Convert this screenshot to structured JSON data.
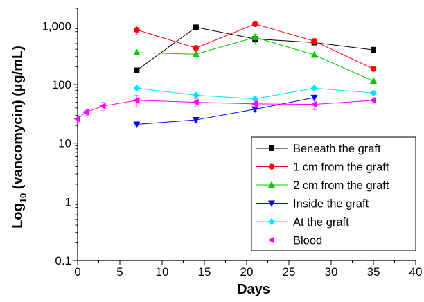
{
  "chart_data": {
    "type": "line",
    "title": "",
    "xlabel": "Days",
    "ylabel_main": "Log",
    "ylabel_sub": "10",
    "ylabel_rest": " (vancomycin) (µg/mL)",
    "xlim": [
      0,
      40
    ],
    "ylim": [
      0.1,
      2000
    ],
    "yscale": "log",
    "x_ticks": [
      0,
      5,
      10,
      15,
      20,
      25,
      30,
      35,
      40
    ],
    "x_tick_labels": [
      "0",
      "5",
      "10",
      "15",
      "20",
      "25",
      "30",
      "35",
      "40"
    ],
    "y_ticks": [
      0.1,
      1,
      10,
      100,
      1000
    ],
    "y_tick_labels": [
      "0.1",
      "1",
      "10",
      "100",
      "1,000"
    ],
    "grid": false,
    "legend_position": "bottom-right",
    "series": [
      {
        "name": "Beneath the graft",
        "color": "#000000",
        "marker": "square",
        "x": [
          7,
          14,
          21,
          28,
          35
        ],
        "y": [
          175,
          950,
          600,
          520,
          390
        ],
        "err": [
          12,
          60,
          110,
          50,
          45
        ]
      },
      {
        "name": "1 cm from the graft",
        "color": "#ff0000",
        "marker": "circle",
        "x": [
          7,
          14,
          21,
          28,
          35
        ],
        "y": [
          860,
          420,
          1080,
          550,
          185
        ],
        "err": [
          150,
          40,
          60,
          60,
          10
        ]
      },
      {
        "name": "2 cm from the graft",
        "color": "#00cc00",
        "marker": "triangle-up",
        "x": [
          7,
          14,
          21,
          28,
          35
        ],
        "y": [
          350,
          330,
          640,
          320,
          115
        ],
        "err": [
          30,
          30,
          120,
          30,
          10
        ]
      },
      {
        "name": "Inside the graft",
        "color": "#0000ff",
        "marker": "triangle-down",
        "x": [
          7,
          14,
          21,
          28
        ],
        "y": [
          21,
          25,
          38,
          60
        ],
        "err": [
          2,
          2,
          3,
          6
        ]
      },
      {
        "name": "At the graft",
        "color": "#00e5ff",
        "marker": "diamond",
        "x": [
          7,
          14,
          21,
          28,
          35
        ],
        "y": [
          87,
          66,
          57,
          87,
          72
        ],
        "err": [
          6,
          5,
          5,
          6,
          5
        ]
      },
      {
        "name": "Blood",
        "color": "#ff00ff",
        "marker": "triangle-left",
        "x": [
          0,
          1,
          3,
          7,
          14,
          21,
          28,
          35
        ],
        "y": [
          26,
          34,
          43,
          54,
          50,
          47,
          46,
          54
        ],
        "err": [
          3,
          4,
          7,
          12,
          8,
          7,
          9,
          6
        ]
      }
    ]
  }
}
